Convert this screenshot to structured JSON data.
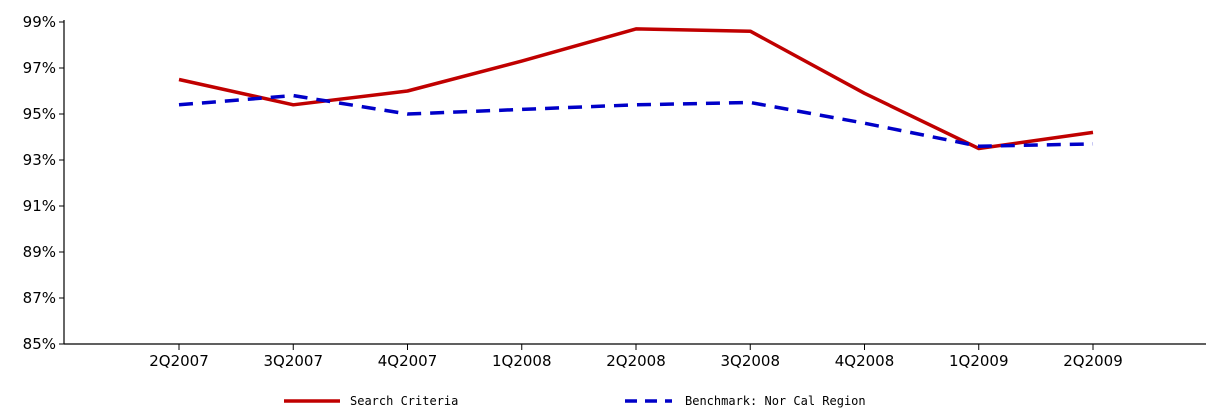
{
  "chart_data": {
    "type": "line",
    "title": "",
    "xlabel": "",
    "ylabel": "",
    "categories": [
      "2Q2007",
      "3Q2007",
      "4Q2007",
      "1Q2008",
      "2Q2008",
      "3Q2008",
      "4Q2008",
      "1Q2009",
      "2Q2009"
    ],
    "ylim": [
      85,
      99
    ],
    "yticks": [
      85,
      87,
      89,
      91,
      93,
      95,
      97,
      99
    ],
    "ytick_labels": [
      "85%",
      "87%",
      "89%",
      "91%",
      "93%",
      "95%",
      "97%",
      "99%"
    ],
    "grid": false,
    "legend_position": "bottom",
    "series": [
      {
        "name": "Search Criteria",
        "color": "#c00000",
        "style": "solid",
        "values": [
          96.5,
          95.4,
          96.0,
          97.3,
          98.7,
          98.6,
          95.9,
          93.5,
          94.2
        ]
      },
      {
        "name": "Benchmark: Nor Cal Region",
        "color": "#0000c8",
        "style": "dashed",
        "values": [
          95.4,
          95.8,
          95.0,
          95.2,
          95.4,
          95.5,
          94.6,
          93.6,
          93.7
        ]
      }
    ]
  }
}
